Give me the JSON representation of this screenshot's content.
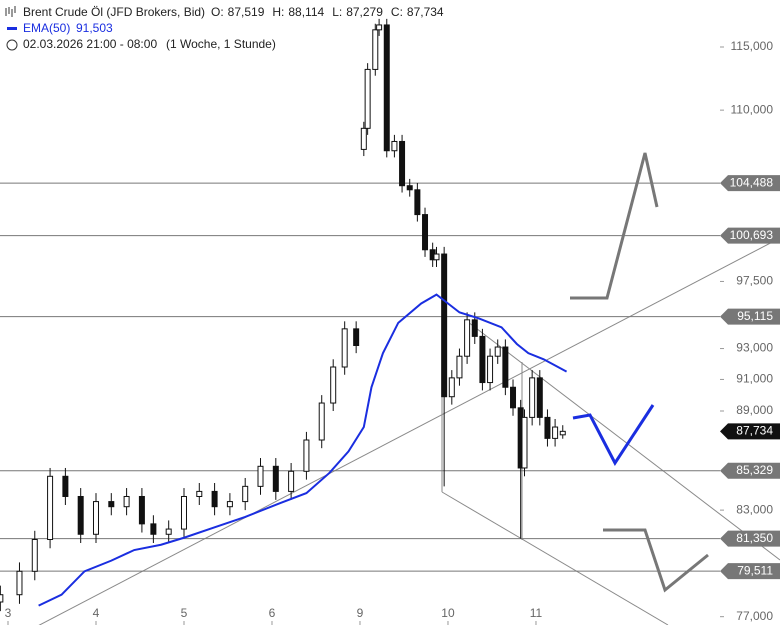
{
  "chart_data": {
    "type": "candlestick",
    "title": "Brent Crude Öl (JFD Brokers, Bid)",
    "ohlc_labels": [
      {
        "name": "O:",
        "value": "87,519"
      },
      {
        "name": "H:",
        "value": "88,114"
      },
      {
        "name": "L:",
        "value": "87,279"
      },
      {
        "name": "C:",
        "value": "87,734"
      }
    ],
    "period": "02.03.2026 21:00 - 08:00",
    "interval": "(1 Woche, 1 Stunde)",
    "log_scale": true,
    "xlim": [
      -2.09,
      186.1
    ],
    "xticks": [
      {
        "value": 0,
        "label": "3"
      },
      {
        "value": 23,
        "label": "4"
      },
      {
        "value": 46,
        "label": "5"
      },
      {
        "value": 69,
        "label": "6"
      },
      {
        "value": 92,
        "label": "9"
      },
      {
        "value": 115,
        "label": "10"
      },
      {
        "value": 138,
        "label": "11"
      }
    ],
    "ylim": [
      76.55,
      118.87
    ],
    "yticks": [
      {
        "value": 77,
        "label": "77,000"
      },
      {
        "value": 83,
        "label": "83,000"
      },
      {
        "value": 89,
        "label": "89,000"
      },
      {
        "value": 91,
        "label": "91,000"
      },
      {
        "value": 93,
        "label": "93,000"
      },
      {
        "value": 97.5,
        "label": "97,500"
      },
      {
        "value": 110,
        "label": "110,000"
      },
      {
        "value": 115,
        "label": "115,000"
      }
    ],
    "candles": {
      "x": [
        -2,
        3,
        7,
        11,
        15,
        19,
        23,
        27,
        31,
        35,
        38,
        42,
        46,
        50,
        54,
        58,
        62,
        66,
        70,
        74,
        78,
        82,
        85,
        88,
        91,
        93,
        94,
        96,
        97,
        99,
        101,
        103,
        105,
        107,
        109,
        111,
        112,
        114,
        116,
        118,
        120,
        122,
        124,
        126,
        128,
        130,
        132,
        134,
        135,
        137,
        139,
        141,
        143,
        145
      ],
      "open": [
        77.8,
        78.2,
        79.5,
        81.3,
        85.0,
        83.8,
        81.6,
        83.5,
        83.2,
        83.8,
        82.2,
        81.6,
        81.9,
        83.8,
        84.1,
        83.2,
        83.5,
        84.4,
        85.6,
        84.1,
        85.3,
        87.2,
        89.5,
        91.8,
        94.3,
        107.0,
        108.6,
        113.2,
        116.4,
        116.8,
        106.9,
        107.6,
        104.3,
        104.0,
        102.2,
        99.7,
        99.0,
        99.4,
        89.9,
        91.1,
        92.5,
        94.9,
        93.8,
        90.8,
        92.5,
        93.1,
        90.5,
        89.2,
        85.5,
        88.6,
        91.1,
        88.6,
        87.3,
        87.519
      ],
      "high": [
        78.7,
        80.0,
        81.8,
        85.5,
        85.5,
        84.3,
        84.0,
        84.0,
        84.3,
        84.3,
        82.7,
        82.4,
        84.3,
        84.6,
        84.6,
        84.0,
        84.9,
        86.1,
        86.1,
        85.8,
        87.7,
        90.0,
        92.3,
        94.8,
        94.8,
        109.1,
        113.7,
        116.9,
        117.3,
        117.3,
        108.1,
        108.1,
        104.8,
        104.5,
        102.7,
        100.2,
        99.9,
        99.9,
        91.6,
        93.0,
        95.4,
        95.4,
        94.3,
        93.0,
        93.6,
        93.6,
        91.0,
        89.7,
        89.1,
        91.6,
        91.6,
        89.1,
        88.5,
        88.114
      ],
      "low": [
        77.3,
        77.7,
        79.0,
        80.8,
        83.3,
        81.1,
        81.1,
        82.7,
        82.7,
        81.7,
        81.1,
        81.1,
        81.4,
        83.3,
        82.7,
        82.7,
        83.0,
        83.9,
        83.6,
        83.6,
        84.8,
        86.7,
        89.0,
        91.3,
        92.7,
        106.5,
        108.1,
        112.7,
        115.9,
        106.4,
        106.4,
        103.8,
        103.5,
        101.7,
        99.2,
        98.5,
        98.5,
        84.4,
        89.4,
        90.6,
        92.0,
        93.3,
        90.3,
        90.3,
        92.0,
        90.0,
        88.7,
        81.35,
        85.0,
        88.1,
        88.1,
        86.8,
        86.8,
        87.279
      ],
      "close": [
        78.2,
        79.5,
        81.3,
        85.0,
        83.8,
        81.6,
        83.5,
        83.2,
        83.8,
        82.2,
        81.6,
        81.9,
        83.8,
        84.1,
        83.2,
        83.5,
        84.4,
        85.6,
        84.1,
        85.3,
        87.2,
        89.5,
        91.8,
        94.3,
        93.2,
        108.6,
        113.2,
        116.4,
        116.8,
        106.9,
        107.6,
        104.3,
        104.0,
        102.2,
        99.7,
        99.0,
        99.4,
        89.9,
        91.1,
        92.5,
        94.9,
        93.8,
        90.8,
        92.5,
        93.1,
        90.5,
        89.2,
        85.5,
        88.6,
        91.1,
        88.6,
        87.3,
        88.0,
        87.734
      ]
    },
    "series": [
      {
        "name": "EMA(50)",
        "value_label": "91,503",
        "color": "#1a2ee0",
        "x": [
          8,
          14,
          20,
          27,
          33,
          40,
          46,
          54,
          62,
          71,
          78,
          84,
          89,
          93,
          95,
          98,
          102,
          108,
          112,
          114,
          118,
          123,
          129,
          133,
          136,
          140,
          146
        ],
        "values": [
          77.6,
          78.2,
          79.5,
          80.1,
          80.7,
          81.0,
          81.4,
          82.0,
          82.6,
          83.4,
          84.0,
          85.2,
          86.5,
          88.0,
          90.5,
          92.7,
          94.7,
          96.0,
          96.6,
          96.2,
          95.4,
          95.0,
          94.4,
          93.3,
          92.7,
          92.3,
          91.5
        ]
      }
    ],
    "levels": [
      {
        "value": 104.488,
        "label": "104,488"
      },
      {
        "value": 100.693,
        "label": "100,693"
      },
      {
        "value": 95.115,
        "label": "95,115"
      },
      {
        "value": 85.329,
        "label": "85,329"
      },
      {
        "value": 81.35,
        "label": "81,350"
      },
      {
        "value": 79.511,
        "label": "79,511"
      }
    ],
    "last_price": {
      "value": 87.734,
      "label": "87,734"
    }
  }
}
